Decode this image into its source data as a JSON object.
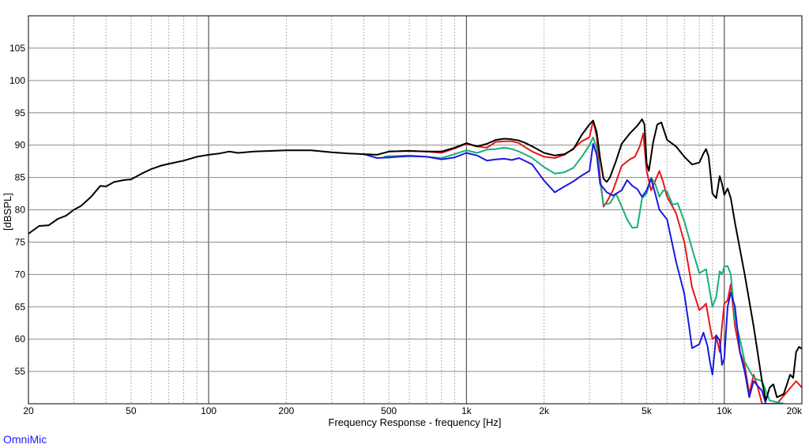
{
  "brand": "OmniMic",
  "chart_data": {
    "type": "line",
    "xlabel": "Frequency Response - frequency [Hz]",
    "ylabel": "[dBSPL]",
    "x_scale": "log",
    "xlim": [
      20,
      20000
    ],
    "ylim": [
      50,
      110
    ],
    "x_ticks": [
      {
        "value": 20,
        "label": "20"
      },
      {
        "value": 50,
        "label": "50"
      },
      {
        "value": 100,
        "label": "100"
      },
      {
        "value": 200,
        "label": "200"
      },
      {
        "value": 500,
        "label": "500"
      },
      {
        "value": 1000,
        "label": "1k"
      },
      {
        "value": 2000,
        "label": "2k"
      },
      {
        "value": 5000,
        "label": "5k"
      },
      {
        "value": 10000,
        "label": "10k"
      },
      {
        "value": 20000,
        "label": "20k"
      }
    ],
    "y_ticks": [
      55,
      60,
      65,
      70,
      75,
      80,
      85,
      90,
      95,
      100,
      105
    ],
    "grid": true,
    "legend": "none",
    "series": [
      {
        "color": "#000000",
        "points": [
          [
            20,
            76.3
          ],
          [
            22,
            77.5
          ],
          [
            24,
            77.6
          ],
          [
            26,
            78.6
          ],
          [
            28,
            79.1
          ],
          [
            30,
            80.0
          ],
          [
            32,
            80.6
          ],
          [
            35,
            82.0
          ],
          [
            38,
            83.7
          ],
          [
            40,
            83.6
          ],
          [
            43,
            84.3
          ],
          [
            47,
            84.6
          ],
          [
            50,
            84.7
          ],
          [
            55,
            85.6
          ],
          [
            60,
            86.3
          ],
          [
            65,
            86.8
          ],
          [
            70,
            87.1
          ],
          [
            80,
            87.6
          ],
          [
            90,
            88.2
          ],
          [
            100,
            88.5
          ],
          [
            110,
            88.7
          ],
          [
            120,
            89.0
          ],
          [
            130,
            88.8
          ],
          [
            150,
            89.0
          ],
          [
            200,
            89.2
          ],
          [
            250,
            89.2
          ],
          [
            300,
            88.9
          ],
          [
            350,
            88.7
          ],
          [
            400,
            88.6
          ],
          [
            450,
            88.5
          ],
          [
            500,
            89.0
          ],
          [
            600,
            89.1
          ],
          [
            700,
            89.0
          ],
          [
            800,
            89.0
          ],
          [
            900,
            89.6
          ],
          [
            1000,
            90.3
          ],
          [
            1100,
            89.8
          ],
          [
            1200,
            90.2
          ],
          [
            1300,
            90.8
          ],
          [
            1400,
            91.0
          ],
          [
            1500,
            90.9
          ],
          [
            1600,
            90.7
          ],
          [
            1700,
            90.3
          ],
          [
            1800,
            89.8
          ],
          [
            2000,
            88.8
          ],
          [
            2200,
            88.4
          ],
          [
            2400,
            88.6
          ],
          [
            2600,
            89.4
          ],
          [
            2800,
            91.6
          ],
          [
            3000,
            93.2
          ],
          [
            3100,
            93.8
          ],
          [
            3200,
            92.0
          ],
          [
            3300,
            88.0
          ],
          [
            3400,
            84.8
          ],
          [
            3500,
            84.3
          ],
          [
            3600,
            85.0
          ],
          [
            3800,
            87.5
          ],
          [
            4000,
            90.2
          ],
          [
            4300,
            91.8
          ],
          [
            4600,
            93.0
          ],
          [
            4800,
            94.0
          ],
          [
            4900,
            93.2
          ],
          [
            5000,
            87.2
          ],
          [
            5100,
            86.0
          ],
          [
            5300,
            90.5
          ],
          [
            5500,
            93.2
          ],
          [
            5700,
            93.5
          ],
          [
            6000,
            90.8
          ],
          [
            6500,
            89.8
          ],
          [
            7000,
            88.2
          ],
          [
            7500,
            87.0
          ],
          [
            8000,
            87.3
          ],
          [
            8300,
            88.7
          ],
          [
            8500,
            89.4
          ],
          [
            8700,
            88.2
          ],
          [
            9000,
            82.5
          ],
          [
            9300,
            81.8
          ],
          [
            9600,
            85.2
          ],
          [
            9800,
            84.0
          ],
          [
            10000,
            82.3
          ],
          [
            10300,
            83.3
          ],
          [
            10600,
            81.8
          ],
          [
            11000,
            78.0
          ],
          [
            12000,
            70.0
          ],
          [
            13000,
            62.0
          ],
          [
            14000,
            53.5
          ],
          [
            14500,
            50.5
          ],
          [
            15000,
            52.5
          ],
          [
            15500,
            53.0
          ],
          [
            16000,
            51.0
          ],
          [
            17000,
            51.5
          ],
          [
            18000,
            54.5
          ],
          [
            18500,
            54.0
          ],
          [
            19000,
            58.0
          ],
          [
            19500,
            58.8
          ],
          [
            20000,
            58.5
          ]
        ]
      },
      {
        "color": "#e8171b",
        "points": [
          [
            500,
            89.0
          ],
          [
            600,
            89.1
          ],
          [
            700,
            89.0
          ],
          [
            800,
            88.8
          ],
          [
            900,
            89.5
          ],
          [
            1000,
            90.2
          ],
          [
            1100,
            89.8
          ],
          [
            1200,
            89.6
          ],
          [
            1300,
            90.5
          ],
          [
            1400,
            90.6
          ],
          [
            1500,
            90.6
          ],
          [
            1600,
            90.3
          ],
          [
            1700,
            89.6
          ],
          [
            1800,
            89.0
          ],
          [
            2000,
            88.2
          ],
          [
            2200,
            88.0
          ],
          [
            2400,
            88.5
          ],
          [
            2600,
            89.5
          ],
          [
            2800,
            90.6
          ],
          [
            3000,
            91.2
          ],
          [
            3100,
            93.8
          ],
          [
            3200,
            91.3
          ],
          [
            3300,
            85.0
          ],
          [
            3400,
            80.5
          ],
          [
            3500,
            81.2
          ],
          [
            3700,
            83.0
          ],
          [
            4000,
            86.8
          ],
          [
            4300,
            87.8
          ],
          [
            4500,
            88.2
          ],
          [
            4700,
            89.8
          ],
          [
            4850,
            91.8
          ],
          [
            5000,
            86.0
          ],
          [
            5200,
            83.0
          ],
          [
            5400,
            84.5
          ],
          [
            5600,
            86.0
          ],
          [
            5800,
            84.2
          ],
          [
            6000,
            82.0
          ],
          [
            6500,
            79.5
          ],
          [
            7000,
            75.0
          ],
          [
            7500,
            68.0
          ],
          [
            8000,
            64.5
          ],
          [
            8200,
            64.8
          ],
          [
            8500,
            65.5
          ],
          [
            8800,
            62.0
          ],
          [
            9000,
            60.0
          ],
          [
            9300,
            60.5
          ],
          [
            9600,
            58.0
          ],
          [
            9800,
            62.0
          ],
          [
            10000,
            65.5
          ],
          [
            10300,
            66.0
          ],
          [
            10600,
            68.5
          ],
          [
            11000,
            62.0
          ],
          [
            11500,
            58.0
          ],
          [
            12000,
            56.0
          ],
          [
            12500,
            51.5
          ],
          [
            13000,
            54.5
          ],
          [
            13500,
            52.5
          ],
          [
            14000,
            50.0
          ],
          [
            16000,
            50.0
          ],
          [
            19000,
            53.5
          ],
          [
            20000,
            52.5
          ]
        ]
      },
      {
        "color": "#1aae7a",
        "points": [
          [
            480,
            88.2
          ],
          [
            500,
            88.3
          ],
          [
            600,
            88.4
          ],
          [
            700,
            88.2
          ],
          [
            800,
            88.0
          ],
          [
            900,
            88.6
          ],
          [
            1000,
            89.2
          ],
          [
            1100,
            88.8
          ],
          [
            1200,
            89.3
          ],
          [
            1300,
            89.4
          ],
          [
            1400,
            89.6
          ],
          [
            1500,
            89.4
          ],
          [
            1600,
            89.0
          ],
          [
            1700,
            88.5
          ],
          [
            1800,
            88.0
          ],
          [
            2000,
            86.6
          ],
          [
            2200,
            85.6
          ],
          [
            2400,
            85.8
          ],
          [
            2600,
            86.5
          ],
          [
            2800,
            88.2
          ],
          [
            3000,
            90.0
          ],
          [
            3100,
            91.2
          ],
          [
            3200,
            89.5
          ],
          [
            3300,
            84.3
          ],
          [
            3400,
            80.8
          ],
          [
            3600,
            81.0
          ],
          [
            3800,
            82.5
          ],
          [
            4000,
            80.5
          ],
          [
            4200,
            78.5
          ],
          [
            4400,
            77.2
          ],
          [
            4600,
            77.3
          ],
          [
            4800,
            81.8
          ],
          [
            5000,
            82.5
          ],
          [
            5200,
            85.0
          ],
          [
            5400,
            84.0
          ],
          [
            5600,
            82.0
          ],
          [
            5800,
            83.0
          ],
          [
            6000,
            82.8
          ],
          [
            6300,
            80.8
          ],
          [
            6600,
            81.0
          ],
          [
            7000,
            78.2
          ],
          [
            7500,
            74.0
          ],
          [
            8000,
            70.2
          ],
          [
            8500,
            70.8
          ],
          [
            9000,
            65.0
          ],
          [
            9300,
            66.5
          ],
          [
            9600,
            70.5
          ],
          [
            9800,
            70.0
          ],
          [
            10000,
            71.2
          ],
          [
            10300,
            71.3
          ],
          [
            10600,
            70.0
          ],
          [
            11000,
            63.0
          ],
          [
            11500,
            60.0
          ],
          [
            12000,
            56.5
          ],
          [
            13000,
            54.0
          ],
          [
            14000,
            53.5
          ],
          [
            15000,
            50.5
          ],
          [
            17000,
            50.0
          ]
        ]
      },
      {
        "color": "#1a1ae0",
        "points": [
          [
            400,
            88.6
          ],
          [
            450,
            88.0
          ],
          [
            500,
            88.1
          ],
          [
            600,
            88.3
          ],
          [
            700,
            88.2
          ],
          [
            800,
            87.8
          ],
          [
            900,
            88.1
          ],
          [
            1000,
            88.8
          ],
          [
            1100,
            88.4
          ],
          [
            1200,
            87.6
          ],
          [
            1300,
            87.8
          ],
          [
            1400,
            87.9
          ],
          [
            1500,
            87.7
          ],
          [
            1600,
            88.0
          ],
          [
            1700,
            87.5
          ],
          [
            1800,
            87.0
          ],
          [
            2000,
            84.5
          ],
          [
            2200,
            82.7
          ],
          [
            2400,
            83.6
          ],
          [
            2600,
            84.4
          ],
          [
            2800,
            85.3
          ],
          [
            3000,
            86.0
          ],
          [
            3100,
            90.2
          ],
          [
            3200,
            88.5
          ],
          [
            3300,
            84.0
          ],
          [
            3500,
            82.7
          ],
          [
            3700,
            82.2
          ],
          [
            4000,
            83.0
          ],
          [
            4200,
            84.6
          ],
          [
            4400,
            83.7
          ],
          [
            4600,
            83.2
          ],
          [
            4800,
            82.0
          ],
          [
            5000,
            83.0
          ],
          [
            5200,
            84.8
          ],
          [
            5400,
            82.5
          ],
          [
            5600,
            80.0
          ],
          [
            6000,
            78.5
          ],
          [
            6500,
            72.0
          ],
          [
            7000,
            67.0
          ],
          [
            7300,
            62.0
          ],
          [
            7500,
            58.6
          ],
          [
            8000,
            59.2
          ],
          [
            8300,
            61.0
          ],
          [
            8600,
            59.0
          ],
          [
            8800,
            56.5
          ],
          [
            9000,
            54.5
          ],
          [
            9300,
            60.6
          ],
          [
            9600,
            59.8
          ],
          [
            9800,
            56.0
          ],
          [
            10000,
            57.0
          ],
          [
            10300,
            65.0
          ],
          [
            10600,
            67.2
          ],
          [
            11000,
            65.0
          ],
          [
            11500,
            58.0
          ],
          [
            12000,
            55.0
          ],
          [
            12500,
            51.0
          ],
          [
            13000,
            53.5
          ],
          [
            14000,
            52.0
          ],
          [
            14500,
            50.0
          ]
        ]
      }
    ]
  }
}
